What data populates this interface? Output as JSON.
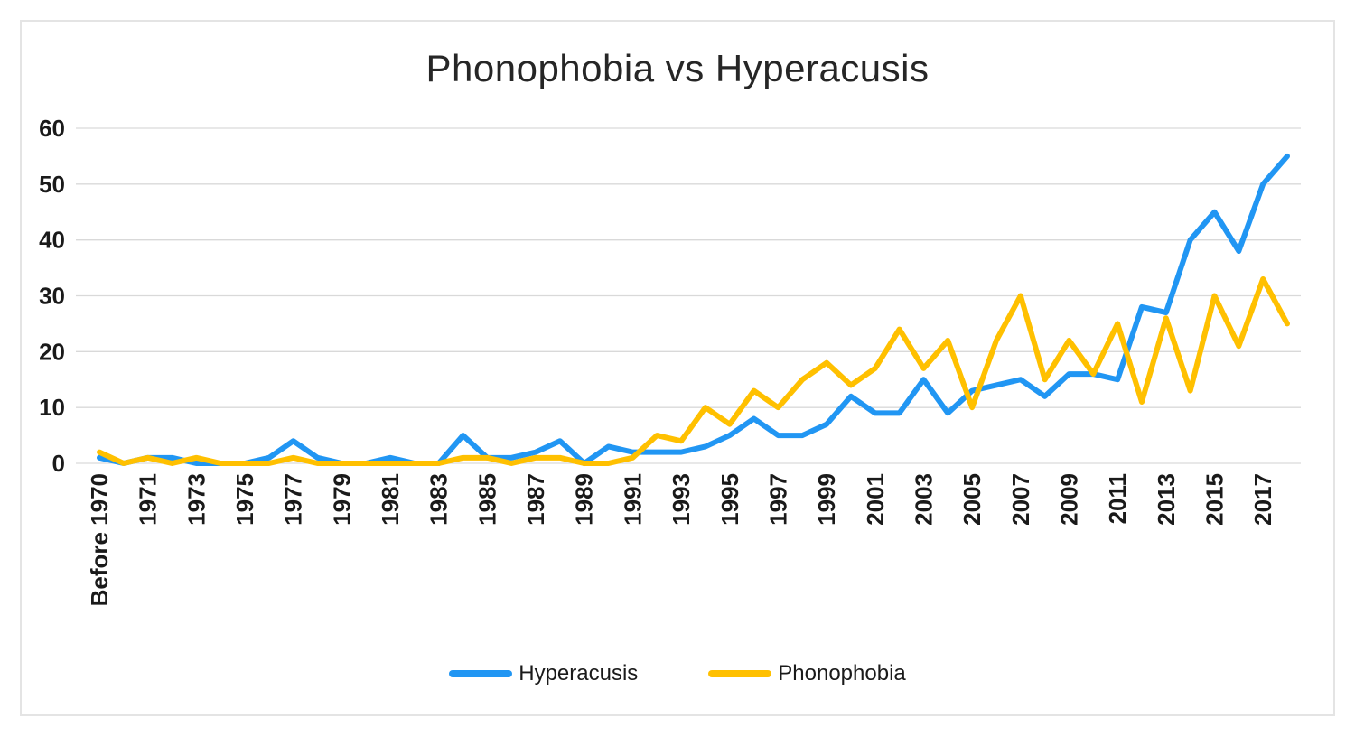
{
  "page": {
    "background_color": "#ffffff",
    "frame_border_color": "#e4e4e4"
  },
  "chart_data": {
    "type": "line",
    "title": "Phonophobia vs Hyperacusis",
    "categories": [
      "Before 1970",
      "1970",
      "1971",
      "1972",
      "1973",
      "1974",
      "1975",
      "1976",
      "1977",
      "1978",
      "1979",
      "1980",
      "1981",
      "1982",
      "1983",
      "1984",
      "1985",
      "1986",
      "1987",
      "1988",
      "1989",
      "1990",
      "1991",
      "1992",
      "1993",
      "1994",
      "1995",
      "1996",
      "1997",
      "1998",
      "1999",
      "2000",
      "2001",
      "2002",
      "2003",
      "2004",
      "2005",
      "2006",
      "2007",
      "2008",
      "2009",
      "2010",
      "2011",
      "2012",
      "2013",
      "2014",
      "2015",
      "2016",
      "2017",
      "2018"
    ],
    "x_tick_label_every": 2,
    "series": [
      {
        "name": "Hyperacusis",
        "color": "#2196F3",
        "values": [
          1,
          0,
          1,
          1,
          0,
          0,
          0,
          1,
          4,
          1,
          0,
          0,
          1,
          0,
          0,
          5,
          1,
          1,
          2,
          4,
          0,
          3,
          2,
          2,
          2,
          3,
          5,
          8,
          5,
          5,
          7,
          12,
          9,
          9,
          15,
          9,
          13,
          14,
          15,
          12,
          16,
          16,
          15,
          28,
          27,
          40,
          45,
          38,
          50,
          55
        ]
      },
      {
        "name": "Phonophobia",
        "color": "#FFC000",
        "values": [
          2,
          0,
          1,
          0,
          1,
          0,
          0,
          0,
          1,
          0,
          0,
          0,
          0,
          0,
          0,
          1,
          1,
          0,
          1,
          1,
          0,
          0,
          1,
          5,
          4,
          10,
          7,
          13,
          10,
          15,
          18,
          14,
          17,
          24,
          17,
          22,
          10,
          22,
          30,
          15,
          22,
          16,
          25,
          11,
          26,
          13,
          30,
          21,
          33,
          25
        ]
      }
    ],
    "ylim": [
      0,
      60
    ],
    "y_ticks": [
      0,
      10,
      20,
      30,
      40,
      50,
      60
    ],
    "grid": "horizontal-only",
    "gridline_color": "#D9D9D9",
    "axis_label_color": "#1a1a1a",
    "legend_position": "bottom"
  }
}
